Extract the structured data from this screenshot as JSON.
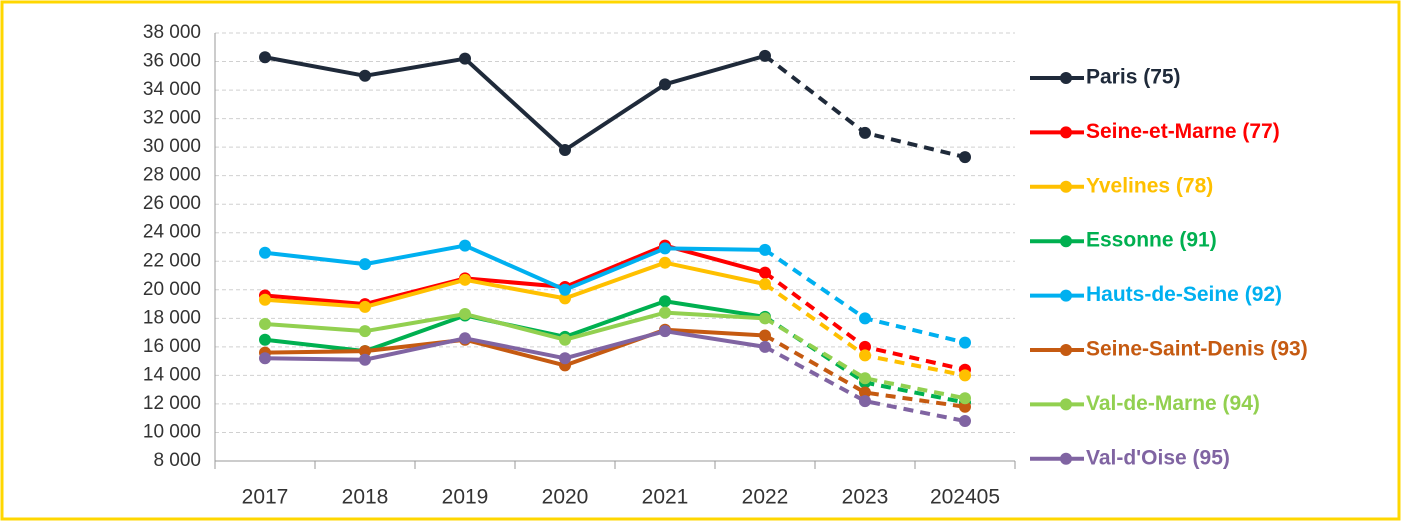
{
  "chart_data": {
    "type": "line",
    "categories": [
      "2017",
      "2018",
      "2019",
      "2020",
      "2021",
      "2022",
      "2023",
      "202405"
    ],
    "dash_start": 5,
    "grid": true,
    "legend": "right",
    "ylim": [
      8000,
      38000
    ],
    "yticks": [
      {
        "value": 8000,
        "label": "8 000"
      },
      {
        "value": 10000,
        "label": "10 000"
      },
      {
        "value": 12000,
        "label": "12 000"
      },
      {
        "value": 14000,
        "label": "14 000"
      },
      {
        "value": 16000,
        "label": "16 000"
      },
      {
        "value": 18000,
        "label": "18 000"
      },
      {
        "value": 20000,
        "label": "20 000"
      },
      {
        "value": 22000,
        "label": "22 000"
      },
      {
        "value": 24000,
        "label": "24 000"
      },
      {
        "value": 26000,
        "label": "26 000"
      },
      {
        "value": 28000,
        "label": "28 000"
      },
      {
        "value": 30000,
        "label": "30 000"
      },
      {
        "value": 32000,
        "label": "32 000"
      },
      {
        "value": 34000,
        "label": "34 000"
      },
      {
        "value": 36000,
        "label": "36 000"
      },
      {
        "value": 38000,
        "label": "38 000"
      }
    ],
    "series": [
      {
        "name": "Paris (75)",
        "color": "#1f2a3a",
        "values": [
          36300,
          35000,
          36200,
          29800,
          34400,
          36400,
          31000,
          29300
        ]
      },
      {
        "name": "Seine-et-Marne (77)",
        "color": "#ff0000",
        "values": [
          19600,
          19000,
          20800,
          20200,
          23100,
          21200,
          16000,
          14400
        ]
      },
      {
        "name": "Yvelines (78)",
        "color": "#ffc000",
        "values": [
          19300,
          18800,
          20700,
          19400,
          21900,
          20400,
          15400,
          14000
        ]
      },
      {
        "name": "Essonne (91)",
        "color": "#00b050",
        "values": [
          16500,
          15700,
          18200,
          16700,
          19200,
          18100,
          13500,
          12100
        ]
      },
      {
        "name": "Hauts-de-Seine (92)",
        "color": "#00b0f0",
        "values": [
          22600,
          21800,
          23100,
          20000,
          22900,
          22800,
          18000,
          16300
        ]
      },
      {
        "name": "Seine-Saint-Denis (93)",
        "color": "#c55a11",
        "values": [
          15600,
          15700,
          16500,
          14700,
          17200,
          16800,
          12800,
          11800
        ]
      },
      {
        "name": "Val-de-Marne (94)",
        "color": "#92d050",
        "values": [
          17600,
          17100,
          18300,
          16500,
          18400,
          18000,
          13800,
          12400
        ]
      },
      {
        "name": "Val-d'Oise (95)",
        "color": "#8064a2",
        "values": [
          15200,
          15100,
          16600,
          15200,
          17100,
          16000,
          12200,
          10800
        ]
      }
    ]
  }
}
